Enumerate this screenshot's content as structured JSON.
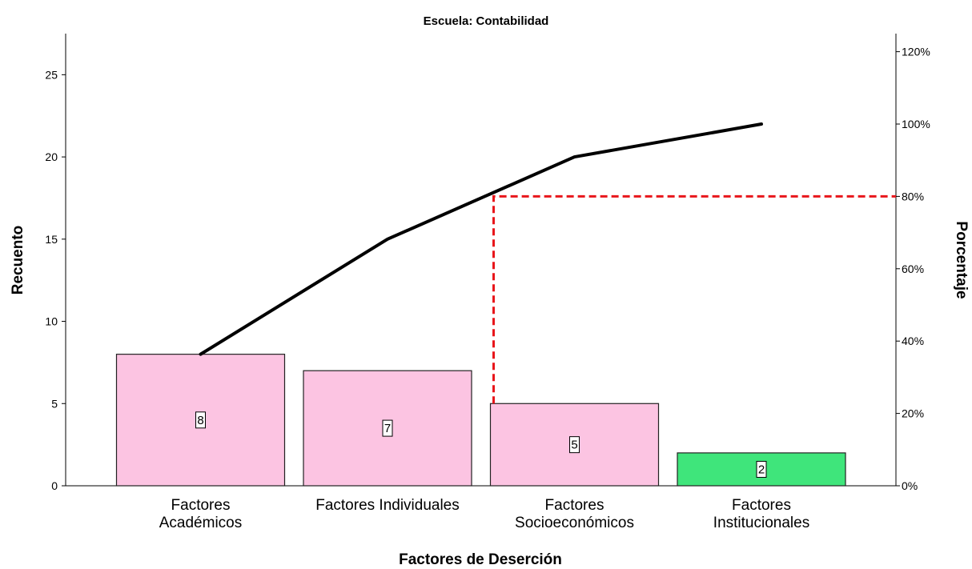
{
  "chart_data": {
    "type": "bar",
    "title": "Escuela: Contabilidad",
    "xlabel": "Factores de Deserción",
    "ylabel": "Recuento",
    "y2label": "Porcentaje",
    "categories": [
      [
        "Factores",
        "Académicos"
      ],
      [
        "Factores Individuales"
      ],
      [
        "Factores",
        "Socioeconómicos"
      ],
      [
        "Factores",
        "Institucionales"
      ]
    ],
    "values": [
      8,
      7,
      5,
      2
    ],
    "bar_colors": [
      "#fcc4e2",
      "#fcc4e2",
      "#fcc4e2",
      "#3fe57b"
    ],
    "cumulative": [
      8,
      15,
      20,
      22
    ],
    "ylim": [
      0,
      27.5
    ],
    "yticks": [
      0,
      5,
      10,
      15,
      20,
      25
    ],
    "y2lim": [
      0,
      1.25
    ],
    "y2ticks": [
      "0%",
      "20%",
      "40%",
      "60%",
      "80%",
      "100%",
      "120%"
    ],
    "y2tick_values": [
      0,
      0.2,
      0.4,
      0.6,
      0.8,
      1.0,
      1.2
    ],
    "threshold": 0.8,
    "threshold_color": "#e8161b",
    "threshold_category_index": 2,
    "line_color": "#000000",
    "grid": false
  }
}
